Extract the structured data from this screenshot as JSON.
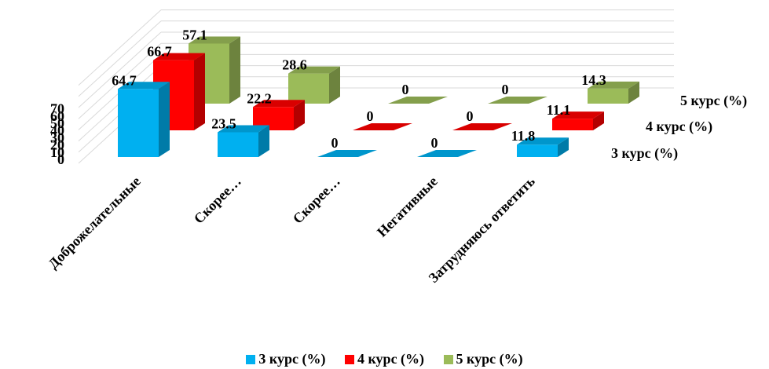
{
  "chart_data": {
    "type": "bar",
    "categories": [
      "Доброжелательные",
      "Скорее…",
      "Скорее…",
      "Негативные",
      "Затрудняюсь ответить"
    ],
    "series": [
      {
        "name": "3 курс (%)",
        "values": [
          64.7,
          23.5,
          0,
          0,
          11.8
        ],
        "color": "#00b0f0"
      },
      {
        "name": "4 курс (%)",
        "values": [
          66.7,
          22.2,
          0,
          0,
          11.1
        ],
        "color": "#ff0000"
      },
      {
        "name": "5 курс (%)",
        "values": [
          57.1,
          28.6,
          0,
          0,
          14.3
        ],
        "color": "#9bbb59"
      }
    ],
    "yticks": [
      "0",
      "10",
      "20",
      "30",
      "40",
      "50",
      "60",
      "70"
    ],
    "ylim": [
      0,
      70
    ],
    "grid": true,
    "legend_position": "bottom"
  }
}
